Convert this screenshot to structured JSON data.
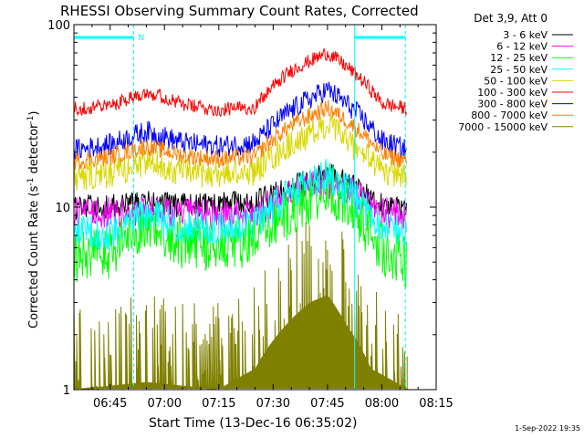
{
  "chart_data": {
    "type": "line",
    "title": "RHESSI Observing Summary Count Rates, Corrected",
    "xlabel": "Start Time (13-Dec-16 06:35:02)",
    "ylabel_main": "Corrected Count Rate (s",
    "ylabel_sup1": "-1",
    "ylabel_mid": " detector",
    "ylabel_sup2": "-1",
    "ylabel_end": ")",
    "y_scale": "log",
    "ylim": [
      1,
      100
    ],
    "xlim_minutes_after_0635": [
      0,
      100
    ],
    "x_ticks": [
      {
        "label": "06:45",
        "minutes": 10
      },
      {
        "label": "07:00",
        "minutes": 25
      },
      {
        "label": "07:15",
        "minutes": 40
      },
      {
        "label": "07:30",
        "minutes": 55
      },
      {
        "label": "07:45",
        "minutes": 70
      },
      {
        "label": "08:00",
        "minutes": 85
      },
      {
        "label": "08:15",
        "minutes": 100
      }
    ],
    "y_ticks": [
      {
        "label": "1",
        "value": 1
      },
      {
        "label": "10",
        "value": 10
      },
      {
        "label": "100",
        "value": 100
      }
    ],
    "legend_header": "Det 3,9, Att 0",
    "series": [
      {
        "name": "3 - 6 keV",
        "color": "#000000",
        "values": [
          [
            0,
            10.0
          ],
          [
            10,
            10.0
          ],
          [
            20,
            10.6
          ],
          [
            30,
            10.2
          ],
          [
            40,
            10.3
          ],
          [
            50,
            10.6
          ],
          [
            60,
            12.8
          ],
          [
            70,
            15.0
          ],
          [
            78,
            12.6
          ],
          [
            85,
            10.2
          ],
          [
            92,
            9.8
          ]
        ]
      },
      {
        "name": "6 - 12 keV",
        "color": "#ff00ff",
        "values": [
          [
            0,
            9.3
          ],
          [
            10,
            9.3
          ],
          [
            20,
            9.5
          ],
          [
            30,
            9.2
          ],
          [
            40,
            9.1
          ],
          [
            50,
            9.3
          ],
          [
            60,
            11.8
          ],
          [
            70,
            13.6
          ],
          [
            78,
            11.6
          ],
          [
            85,
            9.4
          ],
          [
            92,
            9.1
          ]
        ]
      },
      {
        "name": "12 - 25 keV",
        "color": "#00ff00",
        "values": [
          [
            0,
            5.3
          ],
          [
            10,
            5.6
          ],
          [
            20,
            8.2
          ],
          [
            30,
            6.4
          ],
          [
            40,
            6.2
          ],
          [
            50,
            6.4
          ],
          [
            60,
            9.6
          ],
          [
            70,
            12.8
          ],
          [
            78,
            9.0
          ],
          [
            85,
            6.0
          ],
          [
            92,
            4.8
          ]
        ]
      },
      {
        "name": "25 - 50 keV",
        "color": "#00ffff",
        "values": [
          [
            0,
            7.2
          ],
          [
            10,
            7.2
          ],
          [
            20,
            9.2
          ],
          [
            30,
            7.8
          ],
          [
            40,
            7.7
          ],
          [
            50,
            8.2
          ],
          [
            60,
            11.8
          ],
          [
            70,
            15.2
          ],
          [
            78,
            10.8
          ],
          [
            85,
            8.0
          ],
          [
            92,
            7.4
          ]
        ]
      },
      {
        "name": "50 - 100 keV",
        "color": "#d8d800",
        "values": [
          [
            0,
            14.5
          ],
          [
            10,
            15.0
          ],
          [
            20,
            17.8
          ],
          [
            30,
            15.4
          ],
          [
            40,
            15.1
          ],
          [
            50,
            15.6
          ],
          [
            60,
            22.0
          ],
          [
            70,
            28.0
          ],
          [
            78,
            21.0
          ],
          [
            85,
            15.8
          ],
          [
            92,
            14.8
          ]
        ]
      },
      {
        "name": "100 - 300 keV",
        "color": "#ff0000",
        "values": [
          [
            0,
            34.5
          ],
          [
            10,
            36.0
          ],
          [
            20,
            43.0
          ],
          [
            30,
            36.5
          ],
          [
            40,
            34.0
          ],
          [
            50,
            35.5
          ],
          [
            60,
            56.0
          ],
          [
            70,
            70.0
          ],
          [
            78,
            53.0
          ],
          [
            85,
            37.0
          ],
          [
            92,
            34.5
          ]
        ]
      },
      {
        "name": "300 - 800 keV",
        "color": "#0000ff",
        "values": [
          [
            0,
            20.5
          ],
          [
            10,
            22.0
          ],
          [
            20,
            26.0
          ],
          [
            30,
            22.5
          ],
          [
            40,
            21.5
          ],
          [
            50,
            22.5
          ],
          [
            60,
            34.0
          ],
          [
            70,
            44.0
          ],
          [
            78,
            33.0
          ],
          [
            85,
            23.0
          ],
          [
            92,
            20.5
          ]
        ]
      },
      {
        "name": "800 - 7000 keV",
        "color": "#ff8000",
        "values": [
          [
            0,
            17.8
          ],
          [
            10,
            18.8
          ],
          [
            20,
            21.5
          ],
          [
            30,
            19.2
          ],
          [
            40,
            18.3
          ],
          [
            50,
            19.0
          ],
          [
            60,
            28.0
          ],
          [
            70,
            35.0
          ],
          [
            78,
            27.0
          ],
          [
            85,
            19.5
          ],
          [
            92,
            17.8
          ]
        ]
      },
      {
        "name": "7000 - 15000 keV",
        "color": "#808000",
        "values": [
          [
            0,
            1.0
          ],
          [
            10,
            1.05
          ],
          [
            20,
            1.1
          ],
          [
            30,
            1.05
          ],
          [
            40,
            1.0
          ],
          [
            50,
            1.3
          ],
          [
            58,
            2.2
          ],
          [
            65,
            3.0
          ],
          [
            70,
            3.3
          ],
          [
            75,
            2.3
          ],
          [
            82,
            1.3
          ],
          [
            92,
            1.0
          ]
        ]
      }
    ],
    "annotations": {
      "night_marker": "N",
      "vertical_markers_minutes": [
        16.5,
        77.5,
        91.5
      ]
    },
    "grid": false,
    "legend_placement": "right"
  },
  "footer_timestamp": "1-Sep-2022 19:35"
}
